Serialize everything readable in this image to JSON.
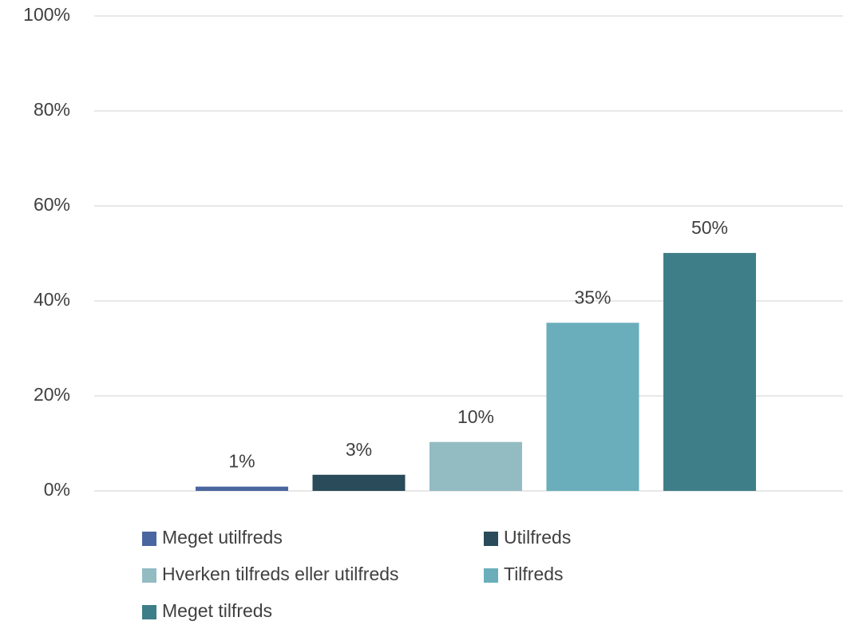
{
  "chart_data": {
    "type": "bar",
    "series": [
      {
        "name": "Meget utilfreds",
        "color": "#4a66a0",
        "values": [
          0.9
        ],
        "value_labels": [
          "1%"
        ]
      },
      {
        "name": "Utilfreds",
        "color": "#2a4b59",
        "values": [
          3.4
        ],
        "value_labels": [
          "3%"
        ]
      },
      {
        "name": "Hverken tilfreds eller utilfreds",
        "color": "#93bbc2",
        "values": [
          10.3
        ],
        "value_labels": [
          "10%"
        ]
      },
      {
        "name": "Tilfreds",
        "color": "#6aaebb",
        "values": [
          35.4
        ],
        "value_labels": [
          "35%"
        ]
      },
      {
        "name": "Meget tilfreds",
        "color": "#3e7e88",
        "values": [
          50.1
        ],
        "value_labels": [
          "50%"
        ]
      }
    ],
    "ylim": [
      0,
      100
    ],
    "yticks": [
      {
        "value": 0,
        "label": "0%"
      },
      {
        "value": 20,
        "label": "20%"
      },
      {
        "value": 40,
        "label": "40%"
      },
      {
        "value": 60,
        "label": "60%"
      },
      {
        "value": 80,
        "label": "80%"
      },
      {
        "value": 100,
        "label": "100%"
      }
    ],
    "grid": true,
    "legend": "bottom"
  }
}
